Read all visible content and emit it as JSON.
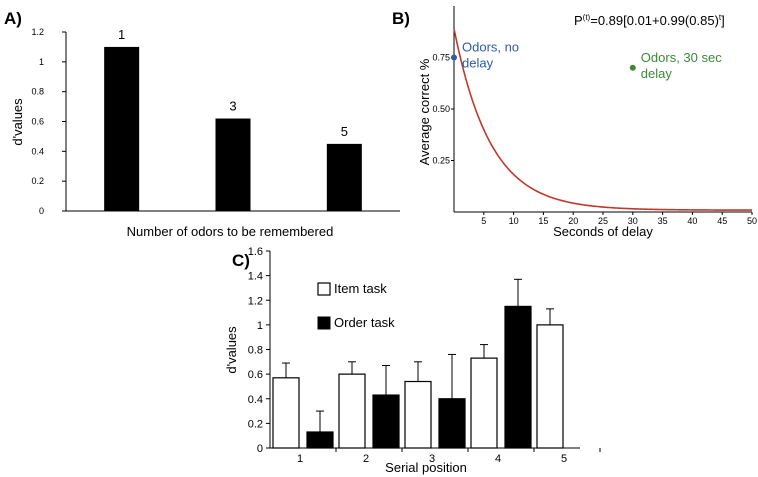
{
  "chart_data": [
    {
      "panel": "A)",
      "type": "bar",
      "categories": [
        "1",
        "3",
        "5"
      ],
      "values": [
        1.1,
        0.62,
        0.45
      ],
      "data_labels": [
        "1",
        "3",
        "5"
      ],
      "xlabel": "Number of odors to be remembered",
      "ylabel": "d'values",
      "ylim": [
        0,
        1.2
      ],
      "yticks": [
        "0",
        "0.2",
        "0.4",
        "0.6",
        "0.8",
        "1",
        "1.2"
      ],
      "bar_color": "#000000"
    },
    {
      "panel": "B)",
      "type": "line",
      "equation": "P(t)=0.89[0.01+0.99(0.85)t]",
      "equation_parts": {
        "lhs": "P",
        "sup1": "(t)",
        "body": "=0.89[0.01+0.99(0.85)",
        "sup2": "t",
        "close": "]"
      },
      "xlabel": "Seconds of delay",
      "ylabel": "Average correct %",
      "xlim": [
        0,
        50
      ],
      "ylim": [
        0,
        1.0
      ],
      "xticks": [
        "5",
        "10",
        "15",
        "20",
        "25",
        "30",
        "35",
        "40",
        "45",
        "50"
      ],
      "yticks": [
        "0.25",
        "0.50",
        "0.75"
      ],
      "curve": {
        "a": 0.89,
        "b": 0.01,
        "c": 0.99,
        "base": 0.85,
        "color": "#c0392b"
      },
      "points": [
        {
          "x": 0,
          "y": 0.75,
          "label_lines": [
            "Odors, no",
            "delay"
          ],
          "color": "#2e5aa8"
        },
        {
          "x": 30,
          "y": 0.7,
          "label_lines": [
            "Odors, 30 sec",
            "delay"
          ],
          "color": "#3a8a3a"
        }
      ]
    },
    {
      "panel": "C)",
      "type": "bar",
      "categories": [
        "1",
        "2",
        "3",
        "4",
        "5"
      ],
      "series": [
        {
          "name": "Item task",
          "values": [
            0.57,
            0.6,
            0.54,
            0.73,
            1.0
          ],
          "errors": [
            0.12,
            0.1,
            0.16,
            0.11,
            0.13
          ],
          "fill": "#ffffff"
        },
        {
          "name": "Order task",
          "values": [
            0.13,
            0.43,
            0.4,
            1.15,
            null
          ],
          "errors": [
            0.17,
            0.24,
            0.36,
            0.22,
            null
          ],
          "fill": "#000000"
        }
      ],
      "xlabel": "Serial position",
      "ylabel": "d'values",
      "ylim": [
        0,
        1.6
      ],
      "yticks": [
        "0",
        "0.2",
        "0.4",
        "0.6",
        "0.8",
        "1",
        "1.2",
        "1.4",
        "1.6"
      ]
    }
  ]
}
